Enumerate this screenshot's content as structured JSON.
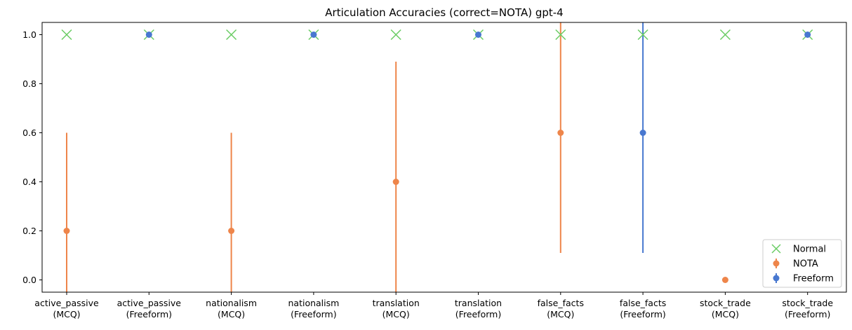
{
  "chart_data": {
    "type": "scatter",
    "title": "Articulation Accuracies (correct=NOTA) gpt-4",
    "xlabel": "",
    "ylabel": "",
    "categories": [
      [
        "active_passive",
        "(MCQ)"
      ],
      [
        "active_passive",
        "(Freeform)"
      ],
      [
        "nationalism",
        "(MCQ)"
      ],
      [
        "nationalism",
        "(Freeform)"
      ],
      [
        "translation",
        "(MCQ)"
      ],
      [
        "translation",
        "(Freeform)"
      ],
      [
        "false_facts",
        "(MCQ)"
      ],
      [
        "false_facts",
        "(Freeform)"
      ],
      [
        "stock_trade",
        "(MCQ)"
      ],
      [
        "stock_trade",
        "(Freeform)"
      ]
    ],
    "ylim": [
      -0.05,
      1.05
    ],
    "yticks": [
      "0.0",
      "0.2",
      "0.4",
      "0.6",
      "0.8",
      "1.0"
    ],
    "grid": false,
    "legend_position": "bottom-right",
    "series": [
      {
        "name": "Normal",
        "marker": "x",
        "color": "#6acc64",
        "points": [
          {
            "x": 0,
            "y": 1.0
          },
          {
            "x": 1,
            "y": 1.0
          },
          {
            "x": 2,
            "y": 1.0
          },
          {
            "x": 3,
            "y": 1.0
          },
          {
            "x": 4,
            "y": 1.0
          },
          {
            "x": 5,
            "y": 1.0
          },
          {
            "x": 6,
            "y": 1.0
          },
          {
            "x": 7,
            "y": 1.0
          },
          {
            "x": 8,
            "y": 1.0
          },
          {
            "x": 9,
            "y": 1.0
          }
        ]
      },
      {
        "name": "NOTA",
        "marker": "o",
        "color": "#ee854a",
        "points": [
          {
            "x": 0,
            "y": 0.2,
            "lo": -0.2,
            "hi": 0.6
          },
          {
            "x": 2,
            "y": 0.2,
            "lo": -0.2,
            "hi": 0.6
          },
          {
            "x": 4,
            "y": 0.4,
            "lo": -0.09,
            "hi": 0.89
          },
          {
            "x": 6,
            "y": 0.6,
            "lo": 0.11,
            "hi": 1.09
          },
          {
            "x": 8,
            "y": 0.0,
            "lo": 0.0,
            "hi": 0.0
          }
        ]
      },
      {
        "name": "Freeform",
        "marker": "o",
        "color": "#4878d0",
        "points": [
          {
            "x": 1,
            "y": 1.0,
            "lo": 1.0,
            "hi": 1.0
          },
          {
            "x": 3,
            "y": 1.0,
            "lo": 1.0,
            "hi": 1.0
          },
          {
            "x": 5,
            "y": 1.0,
            "lo": 1.0,
            "hi": 1.0
          },
          {
            "x": 7,
            "y": 0.6,
            "lo": 0.11,
            "hi": 1.09
          },
          {
            "x": 9,
            "y": 1.0,
            "lo": 1.0,
            "hi": 1.0
          }
        ]
      }
    ]
  }
}
